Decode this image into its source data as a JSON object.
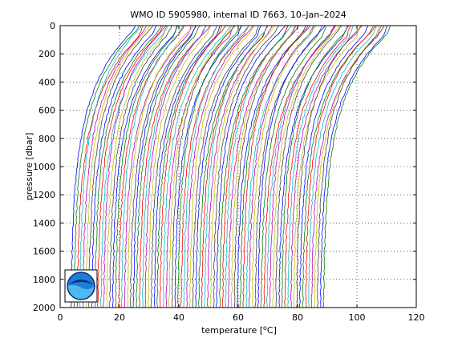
{
  "chart_data": {
    "type": "line",
    "title": "WMO ID 5905980, internal ID 7663, 10–Jan–2024",
    "xlabel_main": "temperature [",
    "xlabel_degree": "o",
    "xlabel_unit": "C]",
    "ylabel": "pressure [dbar]",
    "xlim": [
      0,
      120
    ],
    "ylim": [
      0,
      2000
    ],
    "y_reversed": true,
    "x_ticks": [
      0,
      20,
      40,
      60,
      80,
      100,
      120
    ],
    "y_ticks": [
      0,
      200,
      400,
      600,
      800,
      1000,
      1200,
      1400,
      1600,
      1800,
      2000
    ],
    "grid": true,
    "waterfall": {
      "profile_count": 86,
      "offset_per_profile_degC": 1.0,
      "deep_start_degC": 3.5,
      "surface_start_degC": 25.0,
      "thermocline_depth_dbar": 120
    },
    "series_colors": [
      "#0000ff",
      "#008000",
      "#ff0000",
      "#00bfbf",
      "#bf00bf",
      "#bfbf00",
      "#404040"
    ],
    "logo": "noaa-logo"
  }
}
